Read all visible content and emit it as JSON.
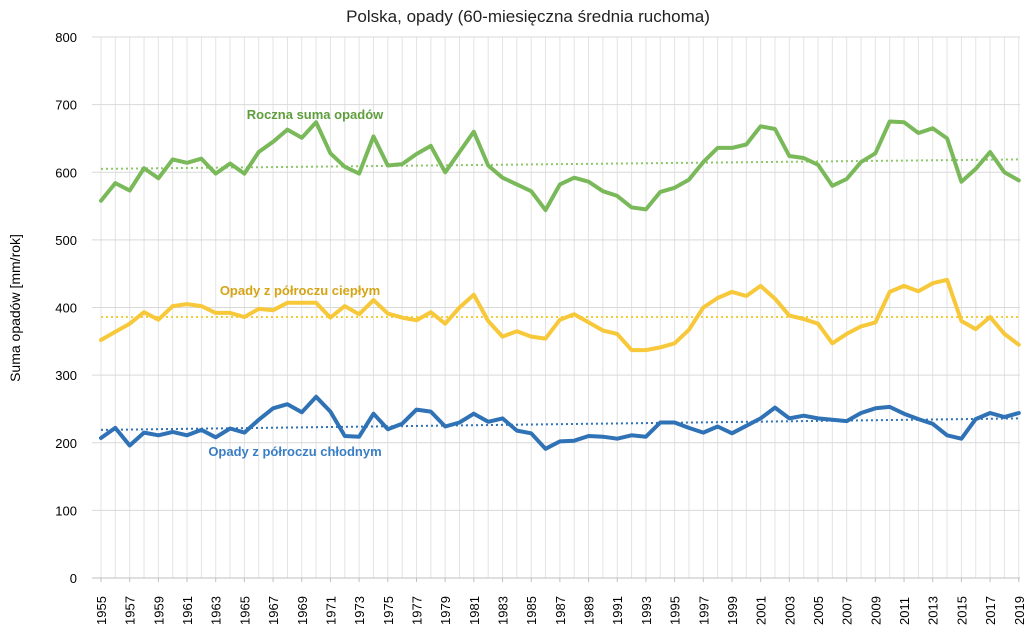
{
  "chart_data": {
    "type": "line",
    "title": "Polska, opady (60-miesięczna średnia ruchoma)",
    "xlabel": "",
    "ylabel": "Suma opadów [mm/rok]",
    "ylim": [
      0,
      800
    ],
    "yticks": [
      0,
      100,
      200,
      300,
      400,
      500,
      600,
      700,
      800
    ],
    "grid": true,
    "x": [
      1955,
      1956,
      1957,
      1958,
      1959,
      1960,
      1961,
      1962,
      1963,
      1964,
      1965,
      1966,
      1967,
      1968,
      1969,
      1970,
      1971,
      1972,
      1973,
      1974,
      1975,
      1976,
      1977,
      1978,
      1979,
      1980,
      1981,
      1982,
      1983,
      1984,
      1985,
      1986,
      1987,
      1988,
      1989,
      1990,
      1991,
      1992,
      1993,
      1994,
      1995,
      1996,
      1997,
      1998,
      1999,
      2000,
      2001,
      2002,
      2003,
      2004,
      2005,
      2006,
      2007,
      2008,
      2009,
      2010,
      2011,
      2012,
      2013,
      2014,
      2015,
      2016,
      2017,
      2018,
      2019
    ],
    "xtick_labels": [
      "1955",
      "1957",
      "1959",
      "1961",
      "1963",
      "1965",
      "1967",
      "1969",
      "1971",
      "1973",
      "1975",
      "1977",
      "1979",
      "1981",
      "1983",
      "1985",
      "1987",
      "1989",
      "1991",
      "1993",
      "1995",
      "1997",
      "1999",
      "2001",
      "2003",
      "2005",
      "2007",
      "2009",
      "2011",
      "2013",
      "2015",
      "2017",
      "2019"
    ],
    "series": [
      {
        "name": "Roczna suma opadów",
        "color": "#7ab95a",
        "label_color": "#5e9e3c",
        "trend_color": "#8cc86a",
        "trend": [
          605,
          619
        ],
        "values": [
          558,
          584,
          573,
          606,
          591,
          619,
          614,
          620,
          598,
          613,
          598,
          630,
          645,
          663,
          651,
          674,
          628,
          608,
          598,
          653,
          610,
          612,
          627,
          639,
          600,
          630,
          660,
          610,
          592,
          582,
          572,
          544,
          582,
          592,
          586,
          572,
          565,
          548,
          545,
          571,
          577,
          589,
          615,
          636,
          636,
          641,
          668,
          664,
          624,
          621,
          611,
          580,
          590,
          615,
          628,
          675,
          674,
          658,
          665,
          650,
          586,
          605,
          630,
          600,
          588
        ]
      },
      {
        "name": "Opady z półroczu ciepłym",
        "color": "#f7c83a",
        "label_color": "#d4a316",
        "trend_color": "#f2cf3a",
        "trend": [
          386,
          386
        ],
        "values": [
          352,
          364,
          376,
          393,
          382,
          402,
          405,
          402,
          392,
          392,
          386,
          398,
          396,
          407,
          407,
          407,
          385,
          402,
          390,
          411,
          391,
          385,
          381,
          393,
          376,
          400,
          419,
          380,
          357,
          365,
          357,
          354,
          382,
          390,
          378,
          366,
          361,
          337,
          337,
          341,
          347,
          367,
          400,
          414,
          423,
          417,
          432,
          413,
          388,
          383,
          376,
          347,
          361,
          372,
          378,
          423,
          432,
          424,
          436,
          441,
          380,
          368,
          386,
          361,
          345
        ]
      },
      {
        "name": "Opady z półroczu chłodnym",
        "color": "#2f72b5",
        "label_color": "#3a7ec4",
        "trend_color": "#2f72b5",
        "trend": [
          219,
          236
        ],
        "values": [
          207,
          222,
          196,
          215,
          211,
          216,
          211,
          219,
          208,
          221,
          215,
          234,
          251,
          257,
          245,
          268,
          246,
          210,
          209,
          243,
          220,
          228,
          249,
          246,
          224,
          230,
          243,
          231,
          236,
          218,
          214,
          191,
          202,
          203,
          210,
          209,
          206,
          211,
          209,
          230,
          230,
          222,
          215,
          224,
          214,
          225,
          236,
          252,
          236,
          240,
          236,
          234,
          232,
          244,
          251,
          253,
          243,
          235,
          228,
          211,
          206,
          235,
          244,
          238,
          244
        ]
      }
    ]
  }
}
